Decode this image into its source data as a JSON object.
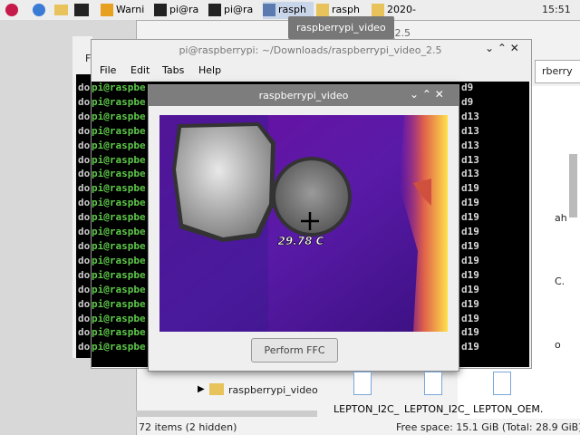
{
  "taskbar": {
    "items": [
      "Warni",
      "pi@ra",
      "pi@ra",
      "rasph",
      "rasph",
      "2020-"
    ],
    "clock": "15:51"
  },
  "tooltip": "raspberrypi_video",
  "back_window": {
    "title": "_2.5"
  },
  "terminal": {
    "title": "pi@raspberrypi: ~/Downloads/raspberrypi_video_2.5",
    "menu": [
      "File",
      "Edit",
      "Tabs",
      "Help"
    ],
    "back_menu": "F",
    "back_lines": [
      "do",
      "do",
      "do",
      "do",
      "do",
      "do",
      "do",
      "do",
      "do",
      "do",
      "do",
      "do",
      "do",
      "do",
      "do",
      "do",
      "do",
      "do",
      "do"
    ],
    "prompt_lines": [
      "pi@raspbe",
      "pi@raspbe",
      "pi@raspbe",
      "pi@raspbe",
      "pi@raspbe",
      "pi@raspbe",
      "pi@raspbe",
      "pi@raspbe",
      "pi@raspbe",
      "pi@raspbe",
      "pi@raspbe",
      "pi@raspbe",
      "pi@raspbe",
      "pi@raspbe",
      "pi@raspbe",
      "pi@raspbe",
      "pi@raspbe",
      "pi@raspbe",
      "pi@raspbe"
    ],
    "right_lines": [
      "d9",
      "d9",
      "d13",
      "d13",
      "d13",
      "d13",
      "d13",
      "d19",
      "d19",
      "d19",
      "d19",
      "d19",
      "d19",
      "d19",
      "d19",
      "d19",
      "d19",
      "d19",
      "d19"
    ]
  },
  "video_window": {
    "title": "raspberrypi_video",
    "temperature": "29.78 C",
    "button": "Perform FFC"
  },
  "file_manager": {
    "address": "rberry",
    "fragments": [
      "ah",
      "C.",
      "o"
    ],
    "tree_item": "raspberrypi_video",
    "files": [
      "LEPTON_I2C_",
      "LEPTON_I2C_",
      "LEPTON_OEM."
    ],
    "status_left": "72 items (2 hidden)",
    "status_right": "Free space: 15.1 GiB (Total: 28.9 GiB)"
  }
}
